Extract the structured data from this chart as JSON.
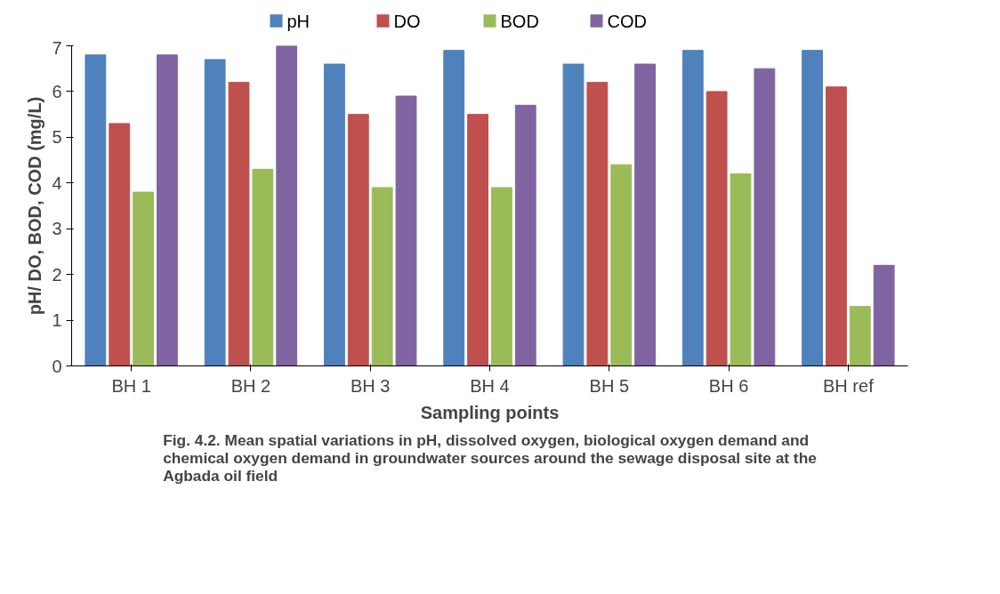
{
  "chart_data": {
    "type": "bar",
    "xlabel": "Sampling points",
    "ylabel": "pH/ DO, BOD, COD (mg/L)",
    "categories": [
      "BH 1",
      "BH 2",
      "BH 3",
      "BH 4",
      "BH 5",
      "BH 6",
      "BH ref"
    ],
    "series": [
      {
        "name": "pH",
        "color": "#4f81bd",
        "values": [
          6.8,
          6.7,
          6.6,
          6.9,
          6.6,
          6.9,
          6.9
        ]
      },
      {
        "name": "DO",
        "color": "#c0504d",
        "values": [
          5.3,
          6.2,
          5.5,
          5.5,
          6.2,
          6.0,
          6.1
        ]
      },
      {
        "name": "BOD",
        "color": "#9bbb59",
        "values": [
          3.8,
          4.3,
          3.9,
          3.9,
          4.4,
          4.2,
          1.3
        ]
      },
      {
        "name": "COD",
        "color": "#8064a2",
        "values": [
          6.8,
          7.0,
          5.9,
          5.7,
          6.6,
          6.5,
          2.2
        ]
      }
    ],
    "ylim": [
      0,
      7
    ],
    "yticks": [
      0,
      1,
      2,
      3,
      4,
      5,
      6,
      7
    ],
    "grid": false,
    "legend": "top",
    "annotations": [
      "Fig. 4.2. Mean spatial variations in pH, dissolved oxygen, biological oxygen demand and chemical oxygen demand in groundwater sources around the sewage disposal site at the Agbada oil field"
    ]
  }
}
